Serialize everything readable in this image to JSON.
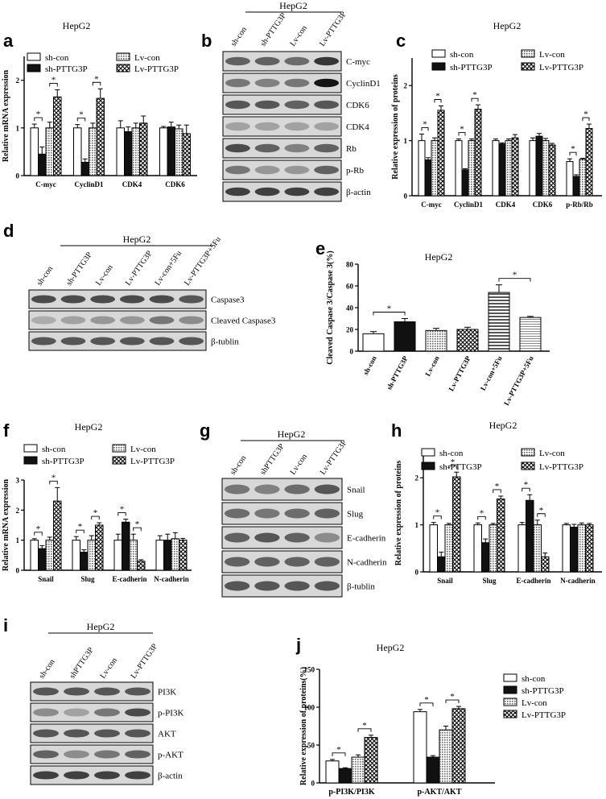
{
  "figure": {
    "panel_letters": [
      "a",
      "b",
      "c",
      "d",
      "e",
      "f",
      "g",
      "h",
      "i",
      "j"
    ],
    "colors": {
      "sh_con": "#ffffff",
      "sh_pttg3p": "#111111",
      "lv_con": "#bfbfbf",
      "lv_pttg3p": "#ffffff",
      "axis": "#000000"
    },
    "patterns": {
      "sh_con": "none",
      "sh_pttg3p": "solid",
      "lv_con": "dots",
      "lv_pttg3p": "checker"
    }
  },
  "panel_a": {
    "title": "HepG2",
    "legend": [
      "sh-con",
      "sh-PTTG3P",
      "Lv-con",
      "Lv-PTTG3P"
    ]
  },
  "panel_b": {
    "title": "HepG2",
    "lanes": [
      "sh-con",
      "sh-PTTG3P",
      "Lv-con",
      "Lv-PTTG3P"
    ],
    "bands": [
      "C-myc",
      "CyclinD1",
      "CDK6",
      "CDK4",
      "Rb",
      "p-Rb",
      "β-actin"
    ]
  },
  "panel_c": {
    "title": "HepG2",
    "legend": [
      "sh-con",
      "sh-PTTG3P",
      "Lv-con",
      "Lv-PTTG3P"
    ]
  },
  "panel_d": {
    "title": "HepG2",
    "lanes": [
      "sh-con",
      "sh-PTTG3P",
      "Lv-con",
      "Lv-PTTG3P",
      "Lv-con+5Fu",
      "Lv-PTTG3P+5Fu"
    ],
    "bands": [
      "Caspase3",
      "Cleaved Caspase3",
      "β-tublin"
    ]
  },
  "panel_e": {
    "title": "HepG2"
  },
  "panel_f": {
    "title": "HepG2",
    "legend": [
      "sh-con",
      "sh-PTTG3P",
      "Lv-con",
      "Lv-PTTG3P"
    ]
  },
  "panel_g": {
    "title": "HepG2",
    "lanes": [
      "sh-con",
      "shPTTG3P",
      "Lv-con",
      "Lv-PTTG3P"
    ],
    "bands": [
      "Snail",
      "Slug",
      "E-cadherin",
      "N-cadherin",
      "β-tublin"
    ]
  },
  "panel_h": {
    "title": "HepG2",
    "legend": [
      "sh-con",
      "sh-PTTG3P",
      "Lv-con",
      "Lv-PTTG3P"
    ]
  },
  "panel_i": {
    "title": "HepG2",
    "lanes": [
      "sh-con",
      "shPTTG3P",
      "Lv-con",
      "Lv-PTTG3P"
    ],
    "bands": [
      "PI3K",
      "p-PI3K",
      "AKT",
      "p-AKT",
      "β-actin"
    ]
  },
  "panel_j": {
    "title": "HepG2",
    "legend": [
      "sh-con",
      "sh-PTTG3P",
      "Lv-con",
      "Lv-PTTG3P"
    ]
  },
  "chart_data": [
    {
      "id": "a",
      "type": "bar",
      "ylabel": "Relative mRNA expression",
      "categories": [
        "C-myc",
        "CyclinD1",
        "CDK4",
        "CDK6"
      ],
      "ylim": [
        0,
        2.5
      ],
      "yticks": [
        0,
        1,
        2
      ],
      "series": [
        {
          "name": "sh-con",
          "values": [
            1.0,
            1.0,
            1.0,
            1.0
          ]
        },
        {
          "name": "sh-PTTG3P",
          "values": [
            0.45,
            0.28,
            0.92,
            1.02
          ]
        },
        {
          "name": "Lv-con",
          "values": [
            1.0,
            1.0,
            1.0,
            0.98
          ]
        },
        {
          "name": "Lv-PTTG3P",
          "values": [
            1.65,
            1.62,
            1.1,
            0.88
          ]
        }
      ],
      "errors": [
        [
          0.08,
          0.07,
          0.15,
          0.03
        ],
        [
          0.15,
          0.07,
          0.1,
          0.1
        ],
        [
          0.12,
          0.1,
          0.1,
          0.08
        ],
        [
          0.15,
          0.2,
          0.15,
          0.18
        ]
      ],
      "sig": [
        [
          0,
          0,
          1
        ],
        [
          0,
          2,
          3
        ],
        [
          1,
          0,
          1
        ],
        [
          1,
          2,
          3
        ]
      ]
    },
    {
      "id": "c",
      "type": "bar",
      "ylabel": "Relative expression of proteins",
      "categories": [
        "C-myc",
        "CyclinD1",
        "CDK4",
        "CDK6",
        "p-Rb/Rb"
      ],
      "ylim": [
        0,
        2.5
      ],
      "yticks": [
        0,
        1,
        2
      ],
      "series": [
        {
          "name": "sh-con",
          "values": [
            1.0,
            1.0,
            1.0,
            1.0,
            0.62
          ]
        },
        {
          "name": "sh-PTTG3P",
          "values": [
            0.65,
            0.47,
            0.94,
            1.08,
            0.35
          ]
        },
        {
          "name": "Lv-con",
          "values": [
            1.0,
            1.0,
            1.0,
            1.0,
            0.66
          ]
        },
        {
          "name": "Lv-PTTG3P",
          "values": [
            1.55,
            1.57,
            1.05,
            0.92,
            1.22
          ]
        }
      ],
      "errors": [
        [
          0.12,
          0.03,
          0.03,
          0.05,
          0.05
        ],
        [
          0.04,
          0.02,
          0.02,
          0.05,
          0.03
        ],
        [
          0.05,
          0.03,
          0.03,
          0.04,
          0.02
        ],
        [
          0.08,
          0.08,
          0.06,
          0.03,
          0.08
        ]
      ],
      "sig": [
        [
          0,
          0,
          1
        ],
        [
          0,
          2,
          3
        ],
        [
          1,
          0,
          1
        ],
        [
          1,
          2,
          3
        ],
        [
          4,
          0,
          1
        ],
        [
          4,
          2,
          3
        ]
      ]
    },
    {
      "id": "e",
      "type": "bar",
      "ylabel": "Cleaved Caspase 3/Caspase 3(%)",
      "categories": [
        "sh-con",
        "sh-PTTG3P",
        "Lv-con",
        "Lv-PTTG3P",
        "Lv-con+5Fu",
        "Lv-PTTG3P+5Fu"
      ],
      "ylim": [
        0,
        80
      ],
      "yticks": [
        0,
        20,
        40,
        60,
        80
      ],
      "values": [
        16,
        27,
        19,
        20,
        54,
        31
      ],
      "errors": [
        2,
        3,
        2,
        2,
        7,
        1
      ],
      "patterns": [
        "none",
        "solid",
        "dots",
        "checker",
        "hstripe",
        "hline"
      ],
      "sig": [
        [
          0,
          1
        ],
        [
          4,
          5
        ]
      ]
    },
    {
      "id": "f",
      "type": "bar",
      "ylabel": "Relative mRNA expression",
      "categories": [
        "Snail",
        "Slug",
        "E-cadherin",
        "N-cadherin"
      ],
      "ylim": [
        0,
        3
      ],
      "yticks": [
        0,
        1,
        2,
        3
      ],
      "series": [
        {
          "name": "sh-con",
          "values": [
            1.0,
            1.0,
            1.0,
            1.0
          ]
        },
        {
          "name": "sh-PTTG3P",
          "values": [
            0.72,
            0.6,
            1.6,
            1.0
          ]
        },
        {
          "name": "Lv-con",
          "values": [
            1.0,
            1.0,
            1.0,
            1.05
          ]
        },
        {
          "name": "Lv-PTTG3P",
          "values": [
            2.3,
            1.5,
            0.3,
            1.0
          ]
        }
      ],
      "errors": [
        [
          0.05,
          0.12,
          0.2,
          0.15
        ],
        [
          0.1,
          0.08,
          0.1,
          0.2
        ],
        [
          0.1,
          0.15,
          0.2,
          0.2
        ],
        [
          0.45,
          0.08,
          0.05,
          0.06
        ]
      ],
      "sig": [
        [
          0,
          0,
          1
        ],
        [
          0,
          2,
          3
        ],
        [
          1,
          0,
          1
        ],
        [
          1,
          2,
          3
        ],
        [
          2,
          0,
          1
        ],
        [
          2,
          2,
          3
        ]
      ]
    },
    {
      "id": "h",
      "type": "bar",
      "ylabel": "Relative expression of proteins",
      "categories": [
        "Snail",
        "Slug",
        "E-cadherin",
        "N-cadherin"
      ],
      "ylim": [
        0,
        2.5
      ],
      "yticks": [
        0,
        1,
        2
      ],
      "series": [
        {
          "name": "sh-con",
          "values": [
            1.0,
            1.0,
            1.0,
            1.0
          ]
        },
        {
          "name": "sh-PTTG3P",
          "values": [
            0.32,
            0.62,
            1.52,
            0.95
          ]
        },
        {
          "name": "Lv-con",
          "values": [
            1.0,
            1.0,
            1.0,
            1.0
          ]
        },
        {
          "name": "Lv-PTTG3P",
          "values": [
            2.02,
            1.55,
            0.32,
            1.0
          ]
        }
      ],
      "errors": [
        [
          0.05,
          0.04,
          0.05,
          0.03
        ],
        [
          0.1,
          0.08,
          0.12,
          0.06
        ],
        [
          0.03,
          0.03,
          0.1,
          0.04
        ],
        [
          0.1,
          0.06,
          0.08,
          0.03
        ]
      ],
      "sig": [
        [
          0,
          0,
          1
        ],
        [
          0,
          2,
          3
        ],
        [
          1,
          0,
          1
        ],
        [
          1,
          2,
          3
        ],
        [
          2,
          0,
          1
        ],
        [
          2,
          2,
          3
        ]
      ]
    },
    {
      "id": "j",
      "type": "bar",
      "ylabel": "Relative expression of proteins(%)",
      "categories": [
        "p-PI3K/PI3K",
        "p-AKT/AKT"
      ],
      "ylim": [
        0,
        150
      ],
      "yticks": [
        0,
        50,
        100,
        150
      ],
      "series": [
        {
          "name": "sh-con",
          "values": [
            29,
            94
          ]
        },
        {
          "name": "sh-PTTG3P",
          "values": [
            19,
            34
          ]
        },
        {
          "name": "Lv-con",
          "values": [
            34,
            70
          ]
        },
        {
          "name": "Lv-PTTG3P",
          "values": [
            60,
            98
          ]
        }
      ],
      "errors": [
        [
          2,
          3
        ],
        [
          1,
          2
        ],
        [
          3,
          5
        ],
        [
          3,
          3
        ]
      ],
      "sig": [
        [
          0,
          0,
          1
        ],
        [
          0,
          2,
          3
        ],
        [
          1,
          0,
          1
        ],
        [
          1,
          2,
          3
        ]
      ]
    }
  ]
}
